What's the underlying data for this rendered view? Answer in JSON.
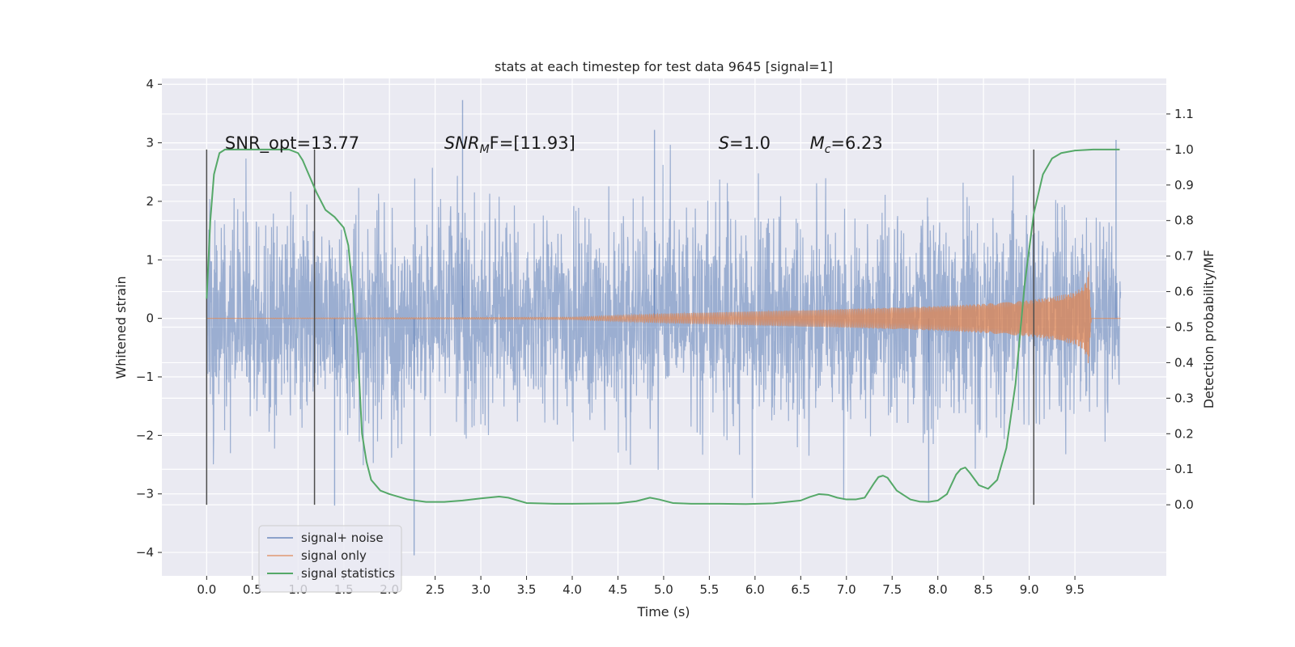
{
  "chart_data": {
    "type": "line",
    "title": "stats at each timestep for test data 9645 [signal=1]",
    "xlabel": "Time (s)",
    "ylabel_left": "Whitened strain",
    "ylabel_right": "Detection probability/MF",
    "xlim": [
      -0.49,
      10.5
    ],
    "ylim_left": [
      -4.4,
      4.1
    ],
    "ylim_right": [
      -0.2,
      1.2
    ],
    "x_ticks": [
      0.0,
      0.5,
      1.0,
      1.5,
      2.0,
      2.5,
      3.0,
      3.5,
      4.0,
      4.5,
      5.0,
      5.5,
      6.0,
      6.5,
      7.0,
      7.5,
      8.0,
      8.5,
      9.0,
      9.5
    ],
    "x_tick_labels": [
      "0.0",
      "0.5",
      "1.0",
      "1.5",
      "2.0",
      "2.5",
      "3.0",
      "3.5",
      "4.0",
      "4.5",
      "5.0",
      "5.5",
      "6.0",
      "6.5",
      "7.0",
      "7.5",
      "8.0",
      "8.5",
      "9.0",
      "9.5"
    ],
    "y_left_ticks": [
      -4,
      -3,
      -2,
      -1,
      0,
      1,
      2,
      3,
      4
    ],
    "y_left_tick_labels": [
      "−4",
      "−3",
      "−2",
      "−1",
      "0",
      "1",
      "2",
      "3",
      "4"
    ],
    "y_right_ticks": [
      0.0,
      0.1,
      0.2,
      0.3,
      0.4,
      0.5,
      0.6,
      0.7,
      0.8,
      0.9,
      1.0,
      1.1
    ],
    "y_right_tick_labels": [
      "0.0",
      "0.1",
      "0.2",
      "0.3",
      "0.4",
      "0.5",
      "0.6",
      "0.7",
      "0.8",
      "0.9",
      "1.0",
      "1.1"
    ],
    "grid": true,
    "legend_position": "lower-left",
    "series": [
      {
        "name": "signal+ noise",
        "axis": "left",
        "color": "#4c72b0",
        "x_range": [
          0.0,
          10.0
        ],
        "typical_amplitude": 1.4,
        "peak_max": 3.73,
        "peak_min": -4.05
      },
      {
        "name": "signal only",
        "axis": "left",
        "color": "#dd8452",
        "description": "chirp",
        "envelope": {
          "t": [
            0.0,
            4.0,
            5.0,
            6.0,
            7.0,
            8.0,
            8.5,
            9.0,
            9.3,
            9.5,
            9.6,
            9.65,
            9.68,
            10.0
          ],
          "amp": [
            0.0,
            0.02,
            0.08,
            0.12,
            0.16,
            0.21,
            0.25,
            0.31,
            0.38,
            0.45,
            0.55,
            0.8,
            0.0,
            0.0
          ]
        }
      },
      {
        "name": "signal statistics",
        "axis": "right",
        "color": "#55a868",
        "x": [
          0.0,
          0.04,
          0.08,
          0.14,
          0.2,
          0.3,
          0.5,
          0.7,
          0.9,
          1.0,
          1.05,
          1.1,
          1.2,
          1.3,
          1.4,
          1.5,
          1.55,
          1.6,
          1.65,
          1.7,
          1.75,
          1.8,
          1.9,
          2.0,
          2.2,
          2.4,
          2.6,
          2.8,
          3.0,
          3.2,
          3.3,
          3.5,
          3.8,
          4.0,
          4.5,
          4.7,
          4.85,
          4.95,
          5.1,
          5.3,
          5.6,
          5.9,
          6.2,
          6.5,
          6.6,
          6.7,
          6.8,
          6.9,
          7.0,
          7.1,
          7.2,
          7.3,
          7.35,
          7.4,
          7.45,
          7.55,
          7.7,
          7.8,
          7.9,
          8.0,
          8.1,
          8.2,
          8.25,
          8.3,
          8.35,
          8.45,
          8.55,
          8.65,
          8.75,
          8.85,
          8.95,
          9.05,
          9.15,
          9.25,
          9.35,
          9.5,
          9.7,
          9.99
        ],
        "y": [
          0.58,
          0.8,
          0.93,
          0.99,
          1.0,
          1.0,
          1.0,
          1.0,
          1.0,
          0.99,
          0.97,
          0.94,
          0.88,
          0.83,
          0.81,
          0.78,
          0.73,
          0.6,
          0.45,
          0.2,
          0.12,
          0.07,
          0.04,
          0.03,
          0.015,
          0.008,
          0.008,
          0.012,
          0.018,
          0.023,
          0.02,
          0.005,
          0.003,
          0.003,
          0.004,
          0.01,
          0.02,
          0.015,
          0.005,
          0.003,
          0.003,
          0.002,
          0.004,
          0.012,
          0.022,
          0.03,
          0.028,
          0.02,
          0.015,
          0.015,
          0.02,
          0.06,
          0.078,
          0.082,
          0.076,
          0.04,
          0.015,
          0.009,
          0.008,
          0.012,
          0.03,
          0.085,
          0.1,
          0.105,
          0.09,
          0.055,
          0.045,
          0.07,
          0.16,
          0.34,
          0.62,
          0.82,
          0.93,
          0.975,
          0.99,
          0.997,
          1.0,
          1.0
        ]
      }
    ],
    "vertical_lines": [
      0.0,
      1.18,
      9.05
    ],
    "annotations": [
      {
        "x": 0.2,
        "text": "SNR_opt=13.77"
      },
      {
        "x": 2.6,
        "text_main": "SNR",
        "text_sub": "M",
        "text_rest": "F=[11.93]"
      },
      {
        "x": 5.6,
        "text_main": "S",
        "text_rest": "=1.0"
      },
      {
        "x": 6.6,
        "text_main": "M",
        "text_sub": "c",
        "text_rest": "=6.23"
      }
    ]
  }
}
